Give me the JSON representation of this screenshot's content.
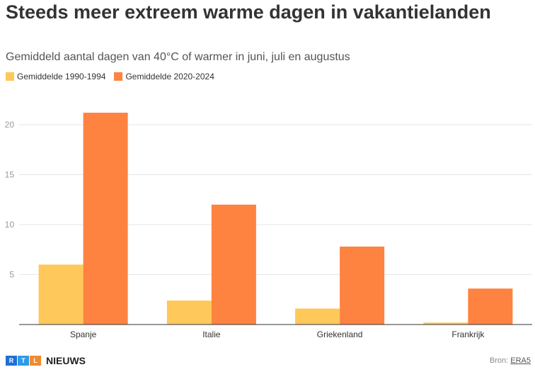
{
  "title": "Steeds meer extreem warme dagen in vakantielanden",
  "subtitle": "Gemiddeld aantal dagen van 40°C of warmer in juni, juli en augustus",
  "colors": {
    "series1": "#FEC85A",
    "series2": "#FE8240",
    "grid": "#e6e6e6",
    "axis": "#333333",
    "tick": "#999999",
    "logo_r": "#1E6FD9",
    "logo_t": "#2E9BE6",
    "logo_l": "#F28A2E"
  },
  "logo": {
    "letters": [
      "R",
      "T",
      "L"
    ],
    "word": "NIEUWS",
    "name": "rtl-nieuws-logo"
  },
  "source": {
    "prefix": "Bron:",
    "link_text": "ERA5"
  },
  "chart_data": {
    "type": "bar",
    "categories": [
      "Spanje",
      "Italie",
      "Griekenland",
      "Frankrijk"
    ],
    "series": [
      {
        "name": "Gemiddelde 1990-1994",
        "values": [
          6.0,
          2.4,
          1.6,
          0.2
        ]
      },
      {
        "name": "Gemiddelde 2020-2024",
        "values": [
          21.2,
          12.0,
          7.8,
          3.6
        ]
      }
    ],
    "yticks": [
      "5",
      "10",
      "15",
      "20"
    ],
    "ylim": [
      0,
      23
    ],
    "grid": true,
    "legend_position": "top-left"
  }
}
